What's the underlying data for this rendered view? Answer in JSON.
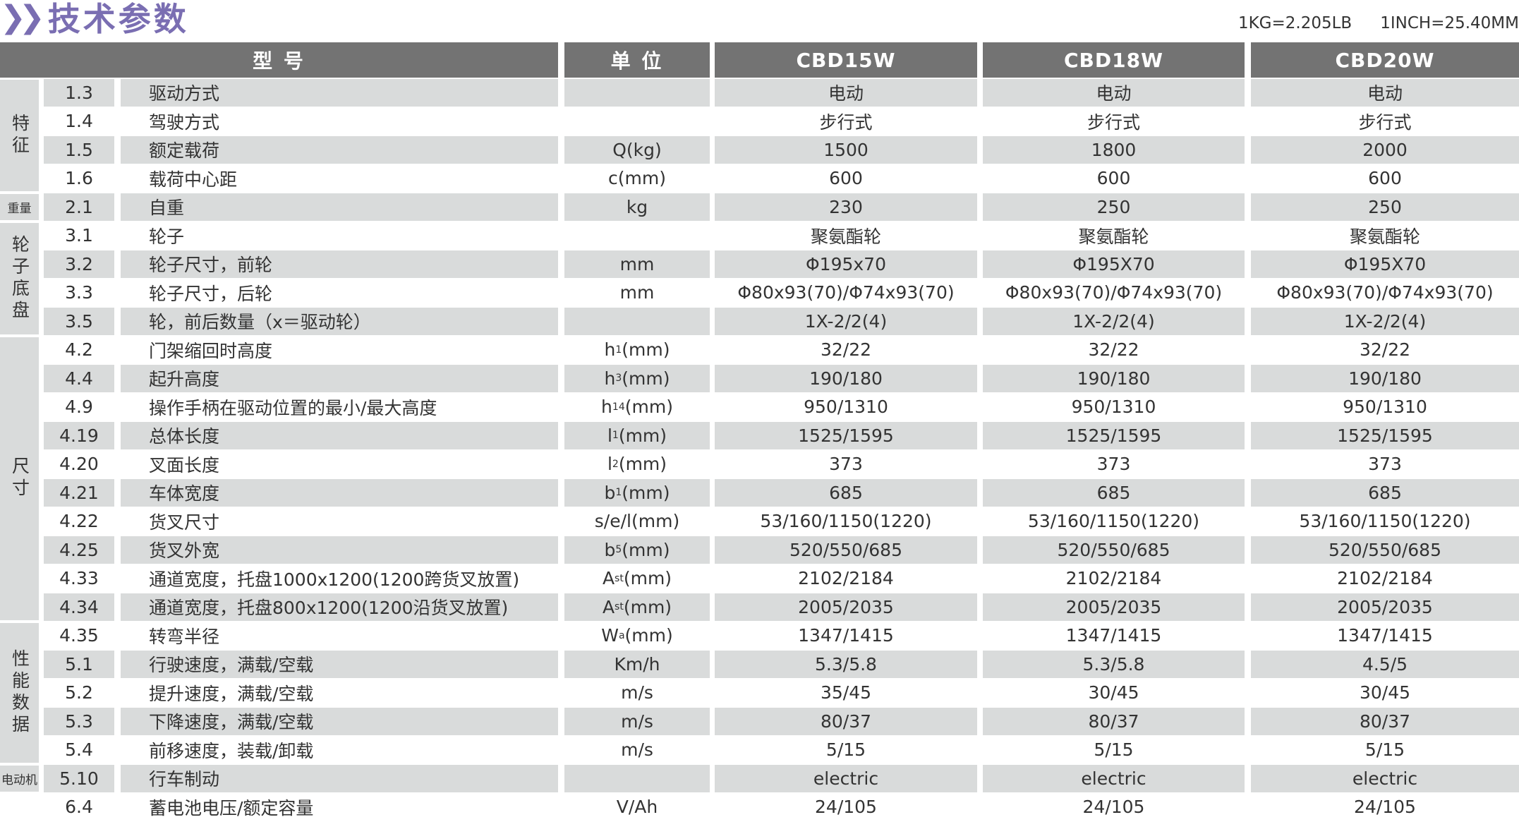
{
  "title": {
    "text": "技术参数",
    "icon": "double-chevron-right-icon"
  },
  "conversions": [
    "1KG=2.205LB",
    "1INCH=25.40MM"
  ],
  "header": {
    "model": "型 号",
    "unit": "单 位",
    "models": [
      "CBD15W",
      "CBD18W",
      "CBD20W"
    ]
  },
  "colors": {
    "header_bg": "#737373",
    "title": "#7a6eb2",
    "row_shade": "#d9dbdb"
  },
  "groups": [
    {
      "label": "特征",
      "rows": 4
    },
    {
      "label": "重量",
      "rows": 1
    },
    {
      "label": "轮子底盘",
      "rows": 4
    },
    {
      "label": "尺寸",
      "rows": 10
    },
    {
      "label": "性能数据",
      "rows": 5
    },
    {
      "label": "电动机",
      "rows": 1
    }
  ],
  "rows": [
    {
      "no": "1.3",
      "name": "驱动方式",
      "unit": "",
      "unit_sub": "",
      "values": [
        "电动",
        "电动",
        "电动"
      ]
    },
    {
      "no": "1.4",
      "name": "驾驶方式",
      "unit": "",
      "unit_sub": "",
      "values": [
        "步行式",
        "步行式",
        "步行式"
      ]
    },
    {
      "no": "1.5",
      "name": "额定载荷",
      "unit": "Q(kg)",
      "unit_sub": "",
      "values": [
        "1500",
        "1800",
        "2000"
      ]
    },
    {
      "no": "1.6",
      "name": "载荷中心距",
      "unit": "c(mm)",
      "unit_sub": "",
      "values": [
        "600",
        "600",
        "600"
      ]
    },
    {
      "no": "2.1",
      "name": "自重",
      "unit": "kg",
      "unit_sub": "",
      "values": [
        "230",
        "250",
        "250"
      ]
    },
    {
      "no": "3.1",
      "name": "轮子",
      "unit": "",
      "unit_sub": "",
      "values": [
        "聚氨酯轮",
        "聚氨酯轮",
        "聚氨酯轮"
      ]
    },
    {
      "no": "3.2",
      "name": "轮子尺寸，前轮",
      "unit": "mm",
      "unit_sub": "",
      "values": [
        "Φ195x70",
        "Φ195X70",
        "Φ195X70"
      ]
    },
    {
      "no": "3.3",
      "name": "轮子尺寸，后轮",
      "unit": "mm",
      "unit_sub": "",
      "values": [
        "Φ80x93(70)/Φ74x93(70)",
        "Φ80x93(70)/Φ74x93(70)",
        "Φ80x93(70)/Φ74x93(70)"
      ]
    },
    {
      "no": "3.5",
      "name": "轮，前后数量（x＝驱动轮）",
      "unit": "",
      "unit_sub": "",
      "values": [
        "1X-2/2(4)",
        "1X-2/2(4)",
        "1X-2/2(4)"
      ]
    },
    {
      "no": "4.2",
      "name": "门架缩回时高度",
      "unit": "h",
      "unit_sub": "1",
      "unit_tail": "(mm)",
      "values": [
        "32/22",
        "32/22",
        "32/22"
      ]
    },
    {
      "no": "4.4",
      "name": "起升高度",
      "unit": "h",
      "unit_sub": "3",
      "unit_tail": "(mm)",
      "values": [
        "190/180",
        "190/180",
        "190/180"
      ]
    },
    {
      "no": "4.9",
      "name": "操作手柄在驱动位置的最小/最大高度",
      "unit": "h",
      "unit_sub": "14",
      "unit_tail": "(mm)",
      "values": [
        "950/1310",
        "950/1310",
        "950/1310"
      ]
    },
    {
      "no": "4.19",
      "name": "总体长度",
      "unit": "l",
      "unit_sub": "1",
      "unit_tail": "(mm)",
      "values": [
        "1525/1595",
        "1525/1595",
        "1525/1595"
      ]
    },
    {
      "no": "4.20",
      "name": "叉面长度",
      "unit": "l",
      "unit_sub": "2",
      "unit_tail": "(mm)",
      "values": [
        "373",
        "373",
        "373"
      ]
    },
    {
      "no": "4.21",
      "name": "车体宽度",
      "unit": "b",
      "unit_sub": "1",
      "unit_tail": "(mm)",
      "values": [
        "685",
        "685",
        "685"
      ]
    },
    {
      "no": "4.22",
      "name": "货叉尺寸",
      "unit": "s/e/l(mm)",
      "unit_sub": "",
      "values": [
        "53/160/1150(1220)",
        "53/160/1150(1220)",
        "53/160/1150(1220)"
      ]
    },
    {
      "no": "4.25",
      "name": "货叉外宽",
      "unit": "b",
      "unit_sub": "5",
      "unit_tail": "(mm)",
      "values": [
        "520/550/685",
        "520/550/685",
        "520/550/685"
      ]
    },
    {
      "no": "4.33",
      "name": "通道宽度，托盘1000x1200(1200跨货叉放置)",
      "unit": "A",
      "unit_sub": "st",
      "unit_tail": "(mm)",
      "values": [
        "2102/2184",
        "2102/2184",
        "2102/2184"
      ]
    },
    {
      "no": "4.34",
      "name": "通道宽度，托盘800x1200(1200沿货叉放置)",
      "unit": "A",
      "unit_sub": "st",
      "unit_tail": "(mm)",
      "values": [
        "2005/2035",
        "2005/2035",
        "2005/2035"
      ]
    },
    {
      "no": "4.35",
      "name": "转弯半径",
      "unit": "W",
      "unit_sub": "a",
      "unit_tail": "(mm)",
      "values": [
        "1347/1415",
        "1347/1415",
        "1347/1415"
      ]
    },
    {
      "no": "5.1",
      "name": "行驶速度，满载/空载",
      "unit": "Km/h",
      "unit_sub": "",
      "values": [
        "5.3/5.8",
        "5.3/5.8",
        "4.5/5"
      ]
    },
    {
      "no": "5.2",
      "name": "提升速度，满载/空载",
      "unit": "m/s",
      "unit_sub": "",
      "values": [
        "35/45",
        "30/45",
        "30/45"
      ]
    },
    {
      "no": "5.3",
      "name": "下降速度，满载/空载",
      "unit": "m/s",
      "unit_sub": "",
      "values": [
        "80/37",
        "80/37",
        "80/37"
      ]
    },
    {
      "no": "5.4",
      "name": "前移速度，装载/卸载",
      "unit": "m/s",
      "unit_sub": "",
      "values": [
        "5/15",
        "5/15",
        "5/15"
      ]
    },
    {
      "no": "5.10",
      "name": "行车制动",
      "unit": "",
      "unit_sub": "",
      "values": [
        "electric",
        "electric",
        "electric"
      ]
    },
    {
      "no": "6.4",
      "name": "蓄电池电压/额定容量",
      "unit": "V/Ah",
      "unit_sub": "",
      "values": [
        "24/105",
        "24/105",
        "24/105"
      ]
    }
  ]
}
